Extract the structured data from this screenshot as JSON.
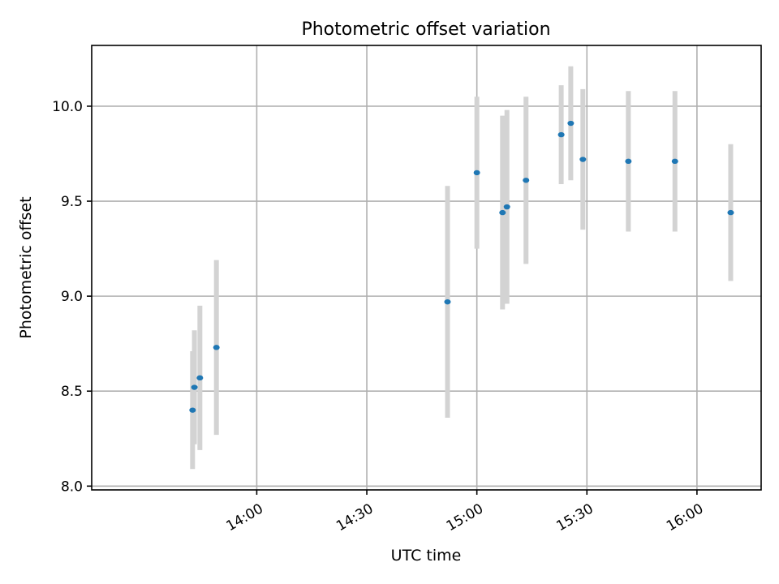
{
  "chart_data": {
    "type": "scatter",
    "title": "Photometric offset variation",
    "xlabel": "UTC time",
    "ylabel": "Photometric offset",
    "xlim_minutes": [
      795.0,
      977.5
    ],
    "ylim": [
      7.98,
      10.32
    ],
    "x_ticks": [
      {
        "minutes": 840,
        "label": "14:00"
      },
      {
        "minutes": 870,
        "label": "14:30"
      },
      {
        "minutes": 900,
        "label": "15:00"
      },
      {
        "minutes": 930,
        "label": "15:30"
      },
      {
        "minutes": 960,
        "label": "16:00"
      }
    ],
    "y_ticks": [
      {
        "value": 8.0,
        "label": "8.0"
      },
      {
        "value": 8.5,
        "label": "8.5"
      },
      {
        "value": 9.0,
        "label": "9.0"
      },
      {
        "value": 9.5,
        "label": "9.5"
      },
      {
        "value": 10.0,
        "label": "10.0"
      }
    ],
    "grid": true,
    "points": [
      {
        "t": 822.5,
        "y": 8.4,
        "yerr": 0.31
      },
      {
        "t": 823.0,
        "y": 8.52,
        "yerr": 0.3
      },
      {
        "t": 824.5,
        "y": 8.57,
        "yerr": 0.38
      },
      {
        "t": 829.0,
        "y": 8.73,
        "yerr": 0.46
      },
      {
        "t": 892.0,
        "y": 8.97,
        "yerr": 0.61
      },
      {
        "t": 900.0,
        "y": 9.65,
        "yerr": 0.4
      },
      {
        "t": 907.0,
        "y": 9.44,
        "yerr": 0.51
      },
      {
        "t": 908.2,
        "y": 9.47,
        "yerr": 0.51
      },
      {
        "t": 913.4,
        "y": 9.61,
        "yerr": 0.44
      },
      {
        "t": 923.0,
        "y": 9.85,
        "yerr": 0.26
      },
      {
        "t": 925.6,
        "y": 9.91,
        "yerr": 0.3
      },
      {
        "t": 928.9,
        "y": 9.72,
        "yerr": 0.37
      },
      {
        "t": 941.3,
        "y": 9.71,
        "yerr": 0.37
      },
      {
        "t": 954.0,
        "y": 9.71,
        "yerr": 0.37
      },
      {
        "t": 969.2,
        "y": 9.44,
        "yerr": 0.36
      }
    ],
    "colors": {
      "point": "#1f77b4",
      "errorbar": "#d3d3d3",
      "grid": "#b0b0b0"
    }
  }
}
